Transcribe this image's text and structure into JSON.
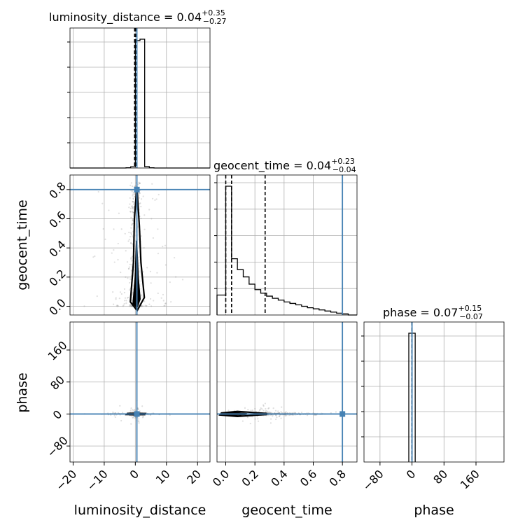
{
  "chart_data": {
    "type": "corner",
    "parameters": [
      {
        "name": "luminosity_distance",
        "axis_label": "luminosity_distance",
        "title": {
          "base": "luminosity_distance = 0.04",
          "plus": "+0.35",
          "minus": "−0.27"
        },
        "range": [
          -21,
          24
        ],
        "ticks": [
          -20,
          -10,
          0,
          10,
          20
        ],
        "tick_labels": [
          "−20",
          "−10",
          "0",
          "10",
          "20"
        ],
        "quantiles": [
          -0.23,
          0.04,
          0.39
        ],
        "truth": 0.5,
        "hist_edges": [
          -21,
          -19.5,
          -18,
          -16.5,
          -15,
          -13.5,
          -12,
          -10.5,
          -9,
          -7.5,
          -6,
          -4.5,
          -3,
          -1.5,
          0,
          1.5,
          3,
          4.5,
          6,
          7.5,
          9,
          10.5,
          12,
          13.5,
          15,
          16.5,
          18,
          19.5,
          21,
          22.5,
          24
        ],
        "hist_counts": [
          0,
          0,
          0,
          0,
          0,
          0,
          0,
          0,
          0,
          0,
          0,
          0,
          2,
          9,
          930,
          940,
          10,
          2,
          0,
          0,
          0,
          0,
          0,
          0,
          0,
          0,
          0,
          0,
          0,
          0
        ]
      },
      {
        "name": "geocent_time",
        "axis_label": "geocent_time",
        "title": {
          "base": "geocent_time = 0.04",
          "plus": "+0.23",
          "minus": "−0.04"
        },
        "range": [
          -0.06,
          0.9
        ],
        "ticks": [
          0.0,
          0.2,
          0.4,
          0.6,
          0.8
        ],
        "tick_labels": [
          "0.0",
          "0.2",
          "0.4",
          "0.6",
          "0.8"
        ],
        "quantiles": [
          0.0,
          0.04,
          0.27
        ],
        "truth": 0.8,
        "hist_edges": [
          -0.06,
          0.0,
          0.04,
          0.08,
          0.12,
          0.16,
          0.2,
          0.24,
          0.28,
          0.32,
          0.36,
          0.4,
          0.44,
          0.48,
          0.52,
          0.56,
          0.6,
          0.64,
          0.68,
          0.72,
          0.76,
          0.8,
          0.84,
          0.9
        ],
        "hist_counts": [
          55,
          355,
          155,
          125,
          105,
          85,
          70,
          60,
          52,
          46,
          41,
          36,
          32,
          28,
          24,
          20,
          17,
          14,
          11,
          8,
          5,
          3,
          0
        ]
      },
      {
        "name": "phase",
        "axis_label": "phase",
        "title": {
          "base": "phase = 0.07",
          "plus": "+0.15",
          "minus": "−0.07"
        },
        "range": [
          -120,
          230
        ],
        "ticks": [
          -80,
          0,
          80,
          160
        ],
        "tick_labels": [
          "−80",
          "0",
          "80",
          "160"
        ],
        "quantiles": [
          0.0,
          0.07,
          0.22
        ],
        "truth": 0.0,
        "hist_edges": [
          -8,
          0,
          8
        ],
        "hist_counts": [
          1000,
          1000
        ]
      }
    ],
    "truth_color": "#4682b4",
    "grid": true
  }
}
